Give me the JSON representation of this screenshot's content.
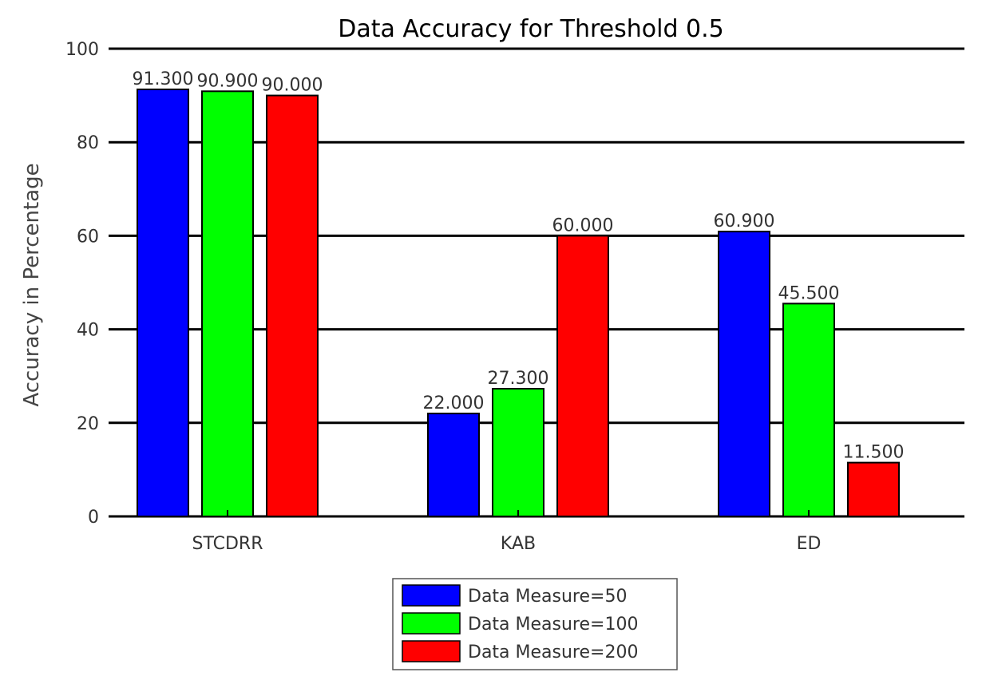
{
  "chart_data": {
    "type": "bar",
    "title": "Data Accuracy for Threshold 0.5",
    "xlabel": "",
    "ylabel": "Accuracy in Percentage",
    "ylim": [
      0,
      100
    ],
    "yticks": [
      0,
      20,
      40,
      60,
      80,
      100
    ],
    "categories": [
      "STCDRR",
      "KAB",
      "ED"
    ],
    "series": [
      {
        "name": "Data Measure=50",
        "color": "#0000ff",
        "values": [
          91.3,
          22.0,
          60.9
        ],
        "labels": [
          "91.300",
          "22.000",
          "60.900"
        ]
      },
      {
        "name": "Data Measure=100",
        "color": "#00ff00",
        "values": [
          90.9,
          27.3,
          45.5
        ],
        "labels": [
          "90.900",
          "27.300",
          "45.500"
        ]
      },
      {
        "name": "Data Measure=200",
        "color": "#ff0000",
        "values": [
          90.0,
          60.0,
          11.5
        ],
        "labels": [
          "90.000",
          "60.000",
          "11.500"
        ]
      }
    ],
    "grid": true,
    "legend_position": "bottom-center"
  }
}
